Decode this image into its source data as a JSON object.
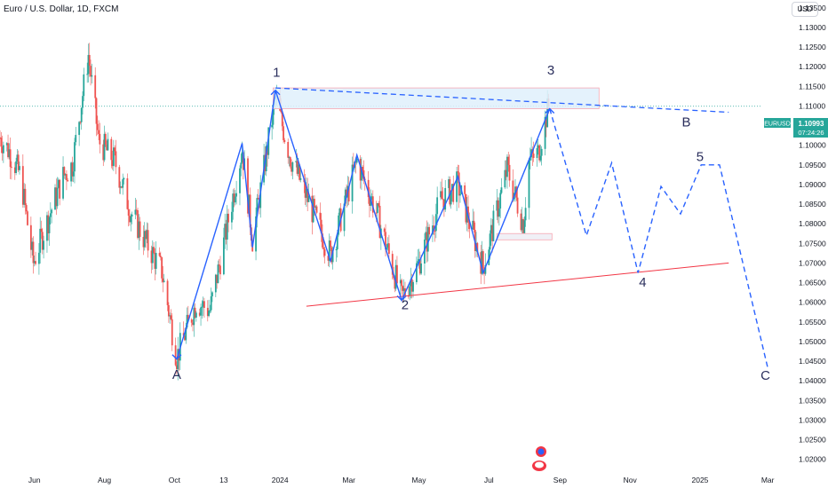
{
  "header": {
    "title": "Euro / U.S. Dollar, 1D, FXCM"
  },
  "currency": "USD",
  "price_tag": {
    "symbol": "EURUSD",
    "price": "1.10993",
    "countdown": "07:24:26"
  },
  "colors": {
    "bull": "#26a69a",
    "bear": "#ef5350",
    "wave": "#2962ff",
    "support": "#f23645",
    "zone_fill": "#dff0fb",
    "zone_stroke": "#f7a8b3",
    "box_fill": "#f0f0f6",
    "box_stroke": "#f7a8b3",
    "current_line": "#26a69a",
    "label": "#2a2e5c"
  },
  "wave_labels": [
    {
      "text": "1",
      "date": "2023-12-29",
      "price": 1.1175
    },
    {
      "text": "3",
      "date": "2024-08-24",
      "price": 1.118
    },
    {
      "text": "B",
      "date": "2024-12-20",
      "price": 1.1048
    },
    {
      "text": "5",
      "date": "2025-01-01",
      "price": 1.096
    },
    {
      "text": "4",
      "date": "2024-11-12",
      "price": 1.064
    },
    {
      "text": "2",
      "date": "2024-04-19",
      "price": 1.0582
    },
    {
      "text": "A",
      "date": "2023-10-03",
      "price": 1.0405
    },
    {
      "text": "C",
      "date": "2025-02-27",
      "price": 1.0402
    }
  ],
  "chart_data": {
    "type": "candlestick",
    "title": "Euro / U.S. Dollar, 1D, FXCM",
    "ylim": [
      1.0172,
      1.137
    ],
    "xlim": [
      "2023-05-02",
      "2025-03-21"
    ],
    "y_ticks": [
      "1.13500",
      "1.13000",
      "1.12500",
      "1.12000",
      "1.11500",
      "1.11000",
      "1.10500",
      "1.10000",
      "1.09500",
      "1.09000",
      "1.08500",
      "1.08000",
      "1.07500",
      "1.07000",
      "1.06500",
      "1.06000",
      "1.05500",
      "1.05000",
      "1.04500",
      "1.04000",
      "1.03500",
      "1.03000",
      "1.02500",
      "1.02000"
    ],
    "x_ticks": [
      {
        "label": "Jun",
        "date": "2023-06-01"
      },
      {
        "label": "Aug",
        "date": "2023-08-01"
      },
      {
        "label": "Oct",
        "date": "2023-10-01"
      },
      {
        "label": "13",
        "date": "2023-11-13"
      },
      {
        "label": "2024",
        "date": "2024-01-01"
      },
      {
        "label": "Mar",
        "date": "2024-03-01"
      },
      {
        "label": "May",
        "date": "2024-05-01"
      },
      {
        "label": "Jul",
        "date": "2024-07-01"
      },
      {
        "label": "Sep",
        "date": "2024-09-01"
      },
      {
        "label": "Nov",
        "date": "2024-11-01"
      },
      {
        "label": "2025",
        "date": "2025-01-01"
      },
      {
        "label": "Mar",
        "date": "2025-03-01"
      }
    ],
    "price_path": [
      [
        "2023-05-02",
        1.102
      ],
      [
        "2023-05-10",
        1.0985
      ],
      [
        "2023-05-20",
        1.092
      ],
      [
        "2023-05-31",
        1.07
      ],
      [
        "2023-06-15",
        1.083
      ],
      [
        "2023-06-26",
        1.092
      ],
      [
        "2023-07-04",
        1.095
      ],
      [
        "2023-07-18",
        1.123
      ],
      [
        "2023-07-27",
        1.101
      ],
      [
        "2023-08-10",
        1.096
      ],
      [
        "2023-08-24",
        1.083
      ],
      [
        "2023-09-05",
        1.076
      ],
      [
        "2023-09-20",
        1.068
      ],
      [
        "2023-10-03",
        1.046
      ],
      [
        "2023-10-20",
        1.06
      ],
      [
        "2023-11-01",
        1.058
      ],
      [
        "2023-11-13",
        1.075
      ],
      [
        "2023-11-29",
        1.099
      ],
      [
        "2023-12-08",
        1.076
      ],
      [
        "2023-12-28",
        1.112
      ],
      [
        "2024-01-10",
        1.097
      ],
      [
        "2024-01-31",
        1.082
      ],
      [
        "2024-02-14",
        1.072
      ],
      [
        "2024-03-08",
        1.096
      ],
      [
        "2024-03-25",
        1.083
      ],
      [
        "2024-04-16",
        1.061
      ],
      [
        "2024-05-01",
        1.07
      ],
      [
        "2024-05-20",
        1.086
      ],
      [
        "2024-06-04",
        1.09
      ],
      [
        "2024-06-26",
        1.069
      ],
      [
        "2024-07-17",
        1.094
      ],
      [
        "2024-07-31",
        1.08
      ],
      [
        "2024-08-05",
        1.096
      ],
      [
        "2024-08-13",
        1.098
      ],
      [
        "2024-08-22",
        1.11
      ]
    ],
    "current_price": 1.10993,
    "annotations": {
      "wave_path": [
        [
          "2023-10-03",
          1.0455
        ],
        [
          "2023-11-29",
          1.1005
        ],
        [
          "2023-12-08",
          1.074
        ],
        [
          "2023-12-28",
          1.114
        ],
        [
          "2024-02-14",
          1.0705
        ],
        [
          "2024-03-08",
          1.0975
        ],
        [
          "2024-04-16",
          1.0605
        ],
        [
          "2024-06-04",
          1.092
        ],
        [
          "2024-06-26",
          1.0675
        ],
        [
          "2024-08-23",
          1.1093
        ]
      ],
      "projection_path": [
        [
          "2024-08-23",
          1.1093
        ],
        [
          "2024-09-24",
          1.077
        ],
        [
          "2024-10-16",
          1.0955
        ],
        [
          "2024-11-08",
          1.0675
        ],
        [
          "2024-11-28",
          1.0895
        ],
        [
          "2024-12-15",
          1.0825
        ],
        [
          "2025-01-02",
          1.095
        ],
        [
          "2025-01-18",
          1.095
        ],
        [
          "2025-03-01",
          1.0433
        ]
      ],
      "resistance_dashed": [
        [
          "2023-12-28",
          1.1146
        ],
        [
          "2025-01-26",
          1.1084
        ]
      ],
      "support_line": [
        [
          "2024-01-24",
          1.059
        ],
        [
          "2025-01-26",
          1.07
        ]
      ],
      "resistance_zone": {
        "x0": "2023-12-26",
        "x1": "2024-10-05",
        "y_top": 1.1146,
        "y_bottom": 1.1093
      },
      "small_box": {
        "x0": "2024-07-08",
        "x1": "2024-08-25",
        "y_top": 1.0775,
        "y_bottom": 1.0759
      }
    }
  }
}
